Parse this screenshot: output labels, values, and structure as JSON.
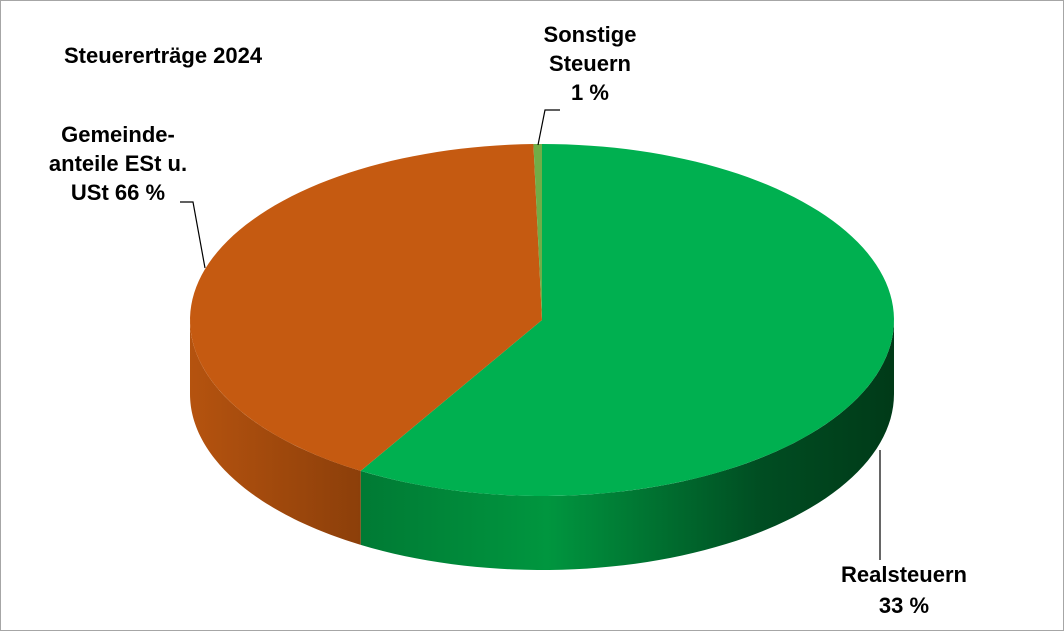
{
  "chart_data": {
    "type": "pie",
    "title": "Steuererträge 2024",
    "slices": [
      {
        "name": "Realsteuern",
        "value": 33,
        "label_lines": [
          "Realsteuern",
          "33 %"
        ],
        "color": "#00b050",
        "side_dark": "#00421c",
        "side_light": "#00b050"
      },
      {
        "name": "Gemeindeanteile ESt u. USt",
        "value": 66,
        "label_lines": [
          "Gemeinde-",
          "anteile ESt u.",
          "USt  66 %"
        ],
        "color": "#c55a11",
        "side_dark": "#8a3a0a",
        "side_light": "#c55a11"
      },
      {
        "name": "Sonstige Steuern",
        "value": 1,
        "label_lines": [
          "Sonstige",
          "Steuern",
          "1 %"
        ],
        "color": "#70ad47",
        "side_dark": "#3d6b24",
        "side_light": "#70ad47"
      }
    ],
    "style": "3d-pie",
    "legend": "none"
  }
}
